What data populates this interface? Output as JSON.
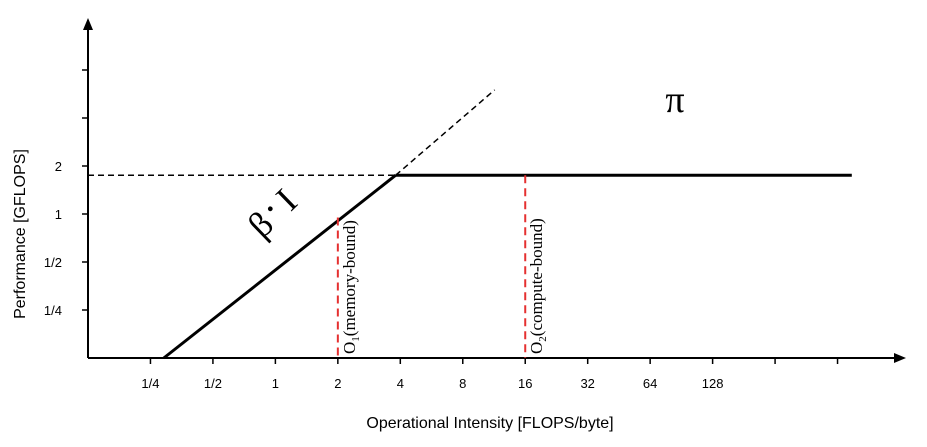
{
  "chart_data": {
    "type": "line",
    "title": "",
    "xlabel": "Operational Intensity [FLOPS/byte]",
    "ylabel": "Performance [GFLOPS]",
    "x_scale": "log2",
    "y_scale": "log2",
    "x_ticks": [
      {
        "value": 0.25,
        "label": "1/4"
      },
      {
        "value": 0.5,
        "label": "1/2"
      },
      {
        "value": 1,
        "label": "1"
      },
      {
        "value": 2,
        "label": "2"
      },
      {
        "value": 4,
        "label": "4"
      },
      {
        "value": 8,
        "label": "8"
      },
      {
        "value": 16,
        "label": "16"
      },
      {
        "value": 32,
        "label": "32"
      },
      {
        "value": 64,
        "label": "64"
      },
      {
        "value": 128,
        "label": "128"
      },
      {
        "value": 256,
        "label": ""
      },
      {
        "value": 512,
        "label": ""
      }
    ],
    "y_ticks": [
      {
        "value": 0.25,
        "label": "1/4"
      },
      {
        "value": 0.5,
        "label": "1/2"
      },
      {
        "value": 1,
        "label": "1"
      },
      {
        "value": 2,
        "label": "2"
      },
      {
        "value": 4,
        "label": ""
      },
      {
        "value": 8,
        "label": ""
      }
    ],
    "xlim": [
      0.125,
      1024
    ],
    "ylim": [
      0.125,
      16
    ],
    "series": [
      {
        "name": "β · I",
        "style": "solid",
        "color": "#000000",
        "points": [
          [
            0.29,
            0.125
          ],
          [
            3.8,
            1.75
          ]
        ]
      },
      {
        "name": "",
        "style": "dashed",
        "color": "#000000",
        "points": [
          [
            3.8,
            1.75
          ],
          [
            11.4,
            6
          ]
        ]
      },
      {
        "name": "π",
        "style": "solid",
        "color": "#000000",
        "points": [
          [
            3.8,
            1.75
          ],
          [
            600,
            1.75
          ]
        ]
      },
      {
        "name": "",
        "style": "dashed",
        "color": "#000000",
        "points": [
          [
            0.125,
            1.75
          ],
          [
            3.8,
            1.75
          ]
        ]
      }
    ],
    "markers": [
      {
        "x": 2,
        "y_top": 0.95,
        "label_main": "O",
        "label_sub": "1",
        "label_rest": "(memory-bound)",
        "color": "#e53030"
      },
      {
        "x": 16,
        "y_top": 1.75,
        "label_main": "O",
        "label_sub": "2",
        "label_rest": "(compute-bound)",
        "color": "#e53030"
      }
    ],
    "annotations": {
      "slope_label": {
        "beta": "β",
        "dot": "•",
        "intensity": "I"
      },
      "roof_label": "π"
    },
    "grid": false,
    "legend": "none"
  }
}
